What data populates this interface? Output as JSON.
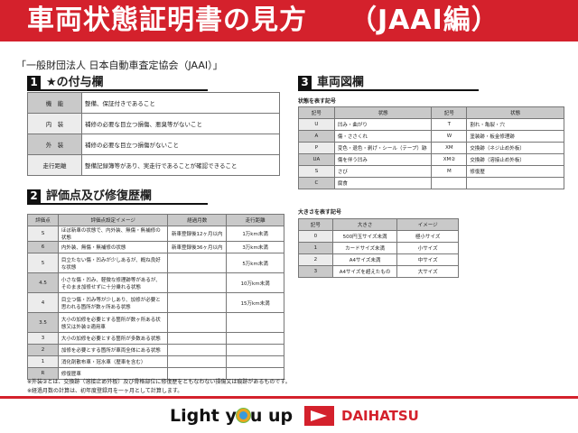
{
  "header": {
    "title": "車両状態証明書の見方　　（JAAI編）"
  },
  "subtitle": "「一般財団法人 日本自動車査定協会（JAAI）」",
  "section1": {
    "num": "1",
    "title": "★の付与欄",
    "rows": [
      {
        "key": "機　能",
        "value": "整備、保証付きであること"
      },
      {
        "key": "内　装",
        "value": "補修の必要な目立つ損傷、悪臭等がないこと"
      },
      {
        "key": "外　装",
        "value": "補修の必要な目立つ損傷がないこと"
      },
      {
        "key": "走行距離",
        "value": "整備記録簿等があり、実走行であることが確認できること"
      }
    ]
  },
  "section2": {
    "num": "2",
    "title": "評価点及び修復歴欄",
    "headers": [
      "評価点",
      "評価点設定イメージ",
      "経過月数",
      "走行距離"
    ],
    "rows": [
      [
        "S",
        "ほぼ新車の状態で、内外装、無傷・無補修の状態",
        "新車登録後12ヶ月以内",
        "1万km未満"
      ],
      [
        "6",
        "内外装、無傷・無補修の状態",
        "新車登録後36ヶ月以内",
        "3万km未満"
      ],
      [
        "5",
        "目立たない傷・凹みが少しあるが、概ね良好な状態",
        "",
        "5万km未満"
      ],
      [
        "4.5",
        "小さな傷・凹み、軽微な修理跡等があるが、そのまま加修せずに十分乗れる状態",
        "",
        "10万km未満"
      ],
      [
        "4",
        "目立つ傷・凹み等が少しあり、加修が必要と思われる箇所が数ヶ所ある状態",
        "",
        "15万km未満"
      ],
      [
        "3.5",
        "大小の加修を必要とする箇所が数ヶ所ある状態又は外装②適用車",
        "",
        ""
      ],
      [
        "3",
        "大小の加修を必要とする箇所が多数ある状態",
        "",
        ""
      ],
      [
        "2",
        "加修を必要とする箇所が車両全体にある状態",
        "",
        ""
      ],
      [
        "1",
        "消化剤散布車・冠水車（歴車を含む）",
        "",
        ""
      ],
      [
        "R",
        "修復歴車",
        "",
        ""
      ]
    ]
  },
  "notes": [
    "※外装②とは、交換跡（溶接止め外板）及び骨格部位に修復歴をともなわない損傷又は痕跡があるものです。",
    "※経過月数の計算は、初年度登録月を一ヶ月として計算します。"
  ],
  "section3": {
    "num": "3",
    "title": "車両図欄",
    "state_label": "状態を表す記号",
    "state_headers": [
      "記号",
      "状態",
      "記号",
      "状態"
    ],
    "state_rows": [
      [
        "U",
        "凹み・曲がり",
        "T",
        "割れ・亀裂・穴"
      ],
      [
        "A",
        "傷・ささくれ",
        "W",
        "塗装跡・板金修理跡"
      ],
      [
        "P",
        "変色・退色・剥げ・シール（テープ）跡",
        "XM",
        "交換跡（ネジ止め外板）"
      ],
      [
        "UA",
        "傷を伴う凹み",
        "XM②",
        "交換跡（溶接止め外板）"
      ],
      [
        "S",
        "さび",
        "M",
        "修復歴"
      ],
      [
        "C",
        "腐食",
        "",
        ""
      ]
    ],
    "size_label": "大きさを表す記号",
    "size_headers": [
      "記号",
      "大きさ",
      "イメージ"
    ],
    "size_rows": [
      [
        "0",
        "500円玉サイズ未満",
        "極小サイズ"
      ],
      [
        "1",
        "カードサイズ未満",
        "小サイズ"
      ],
      [
        "2",
        "A4サイズ未満",
        "中サイズ"
      ],
      [
        "3",
        "A4サイズを超えたもの",
        "大サイズ"
      ]
    ]
  },
  "footer": {
    "slogan_left": "Light y",
    "slogan_right": "u up",
    "brand": "DAIHATSU"
  },
  "colors": {
    "brand_red": "#d4212c",
    "header_gray": "#c9c9c9"
  }
}
